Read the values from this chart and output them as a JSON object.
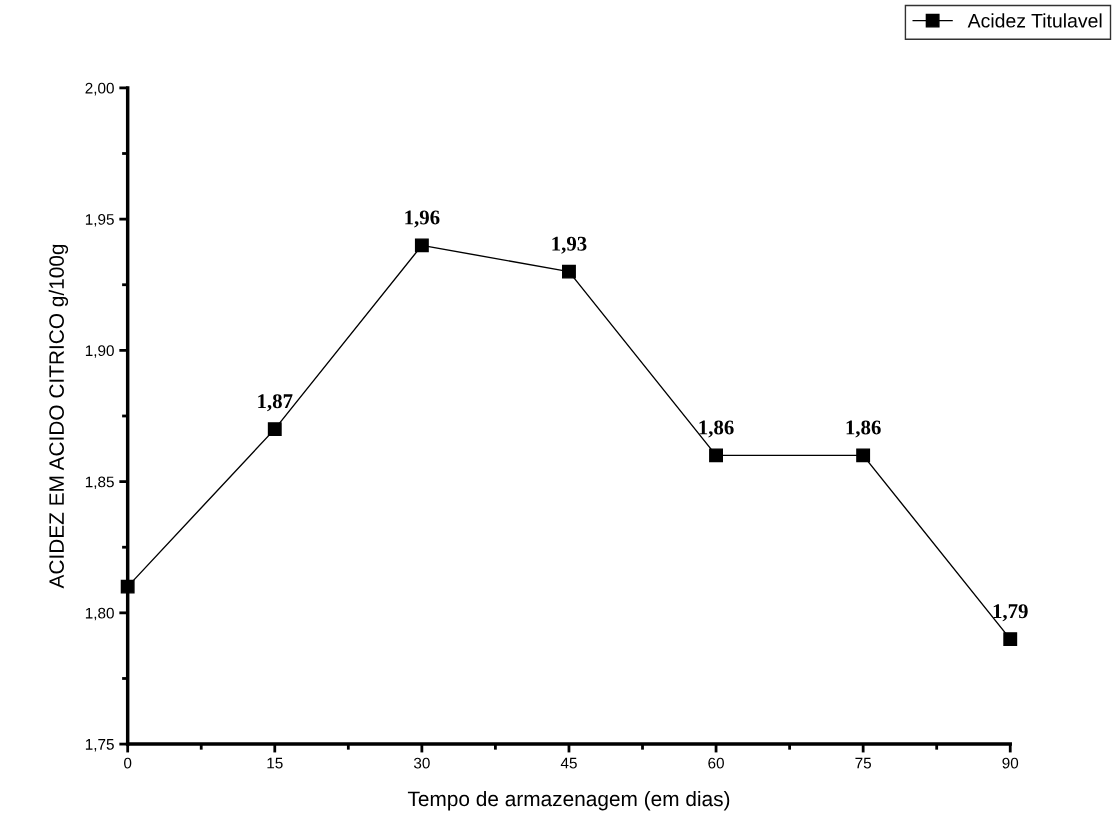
{
  "chart_data": {
    "type": "line",
    "xlabel": "Tempo de armazenagem (em dias)",
    "ylabel": "ACIDEZ EM ACIDO CITRICO g/100g",
    "x": [
      0,
      15,
      30,
      45,
      60,
      75,
      90
    ],
    "series": [
      {
        "name": "Acidez Titulavel",
        "color": "#000000",
        "values": [
          1.81,
          1.87,
          1.94,
          1.93,
          1.86,
          1.86,
          1.79
        ],
        "value_labels": [
          null,
          "1,87",
          null,
          "1,93",
          "1,86",
          "1,86",
          "1,79"
        ]
      }
    ],
    "annotations": [
      {
        "text": "1,96",
        "x": 30,
        "y": 1.94
      }
    ],
    "xlim": [
      0,
      90
    ],
    "xticks": [
      0,
      15,
      30,
      45,
      60,
      75,
      90
    ],
    "ylim": [
      1.75,
      2.0
    ],
    "yticks": [
      {
        "value": 1.75,
        "label": "1,75"
      },
      {
        "value": 1.8,
        "label": "1,80"
      },
      {
        "value": 1.85,
        "label": "1,85"
      },
      {
        "value": 1.9,
        "label": "1,90"
      },
      {
        "value": 1.95,
        "label": "1,95"
      },
      {
        "value": 2.0,
        "label": "2,00"
      }
    ],
    "marker": "square",
    "line_style": "solid",
    "legend": "top right",
    "grid": false
  }
}
